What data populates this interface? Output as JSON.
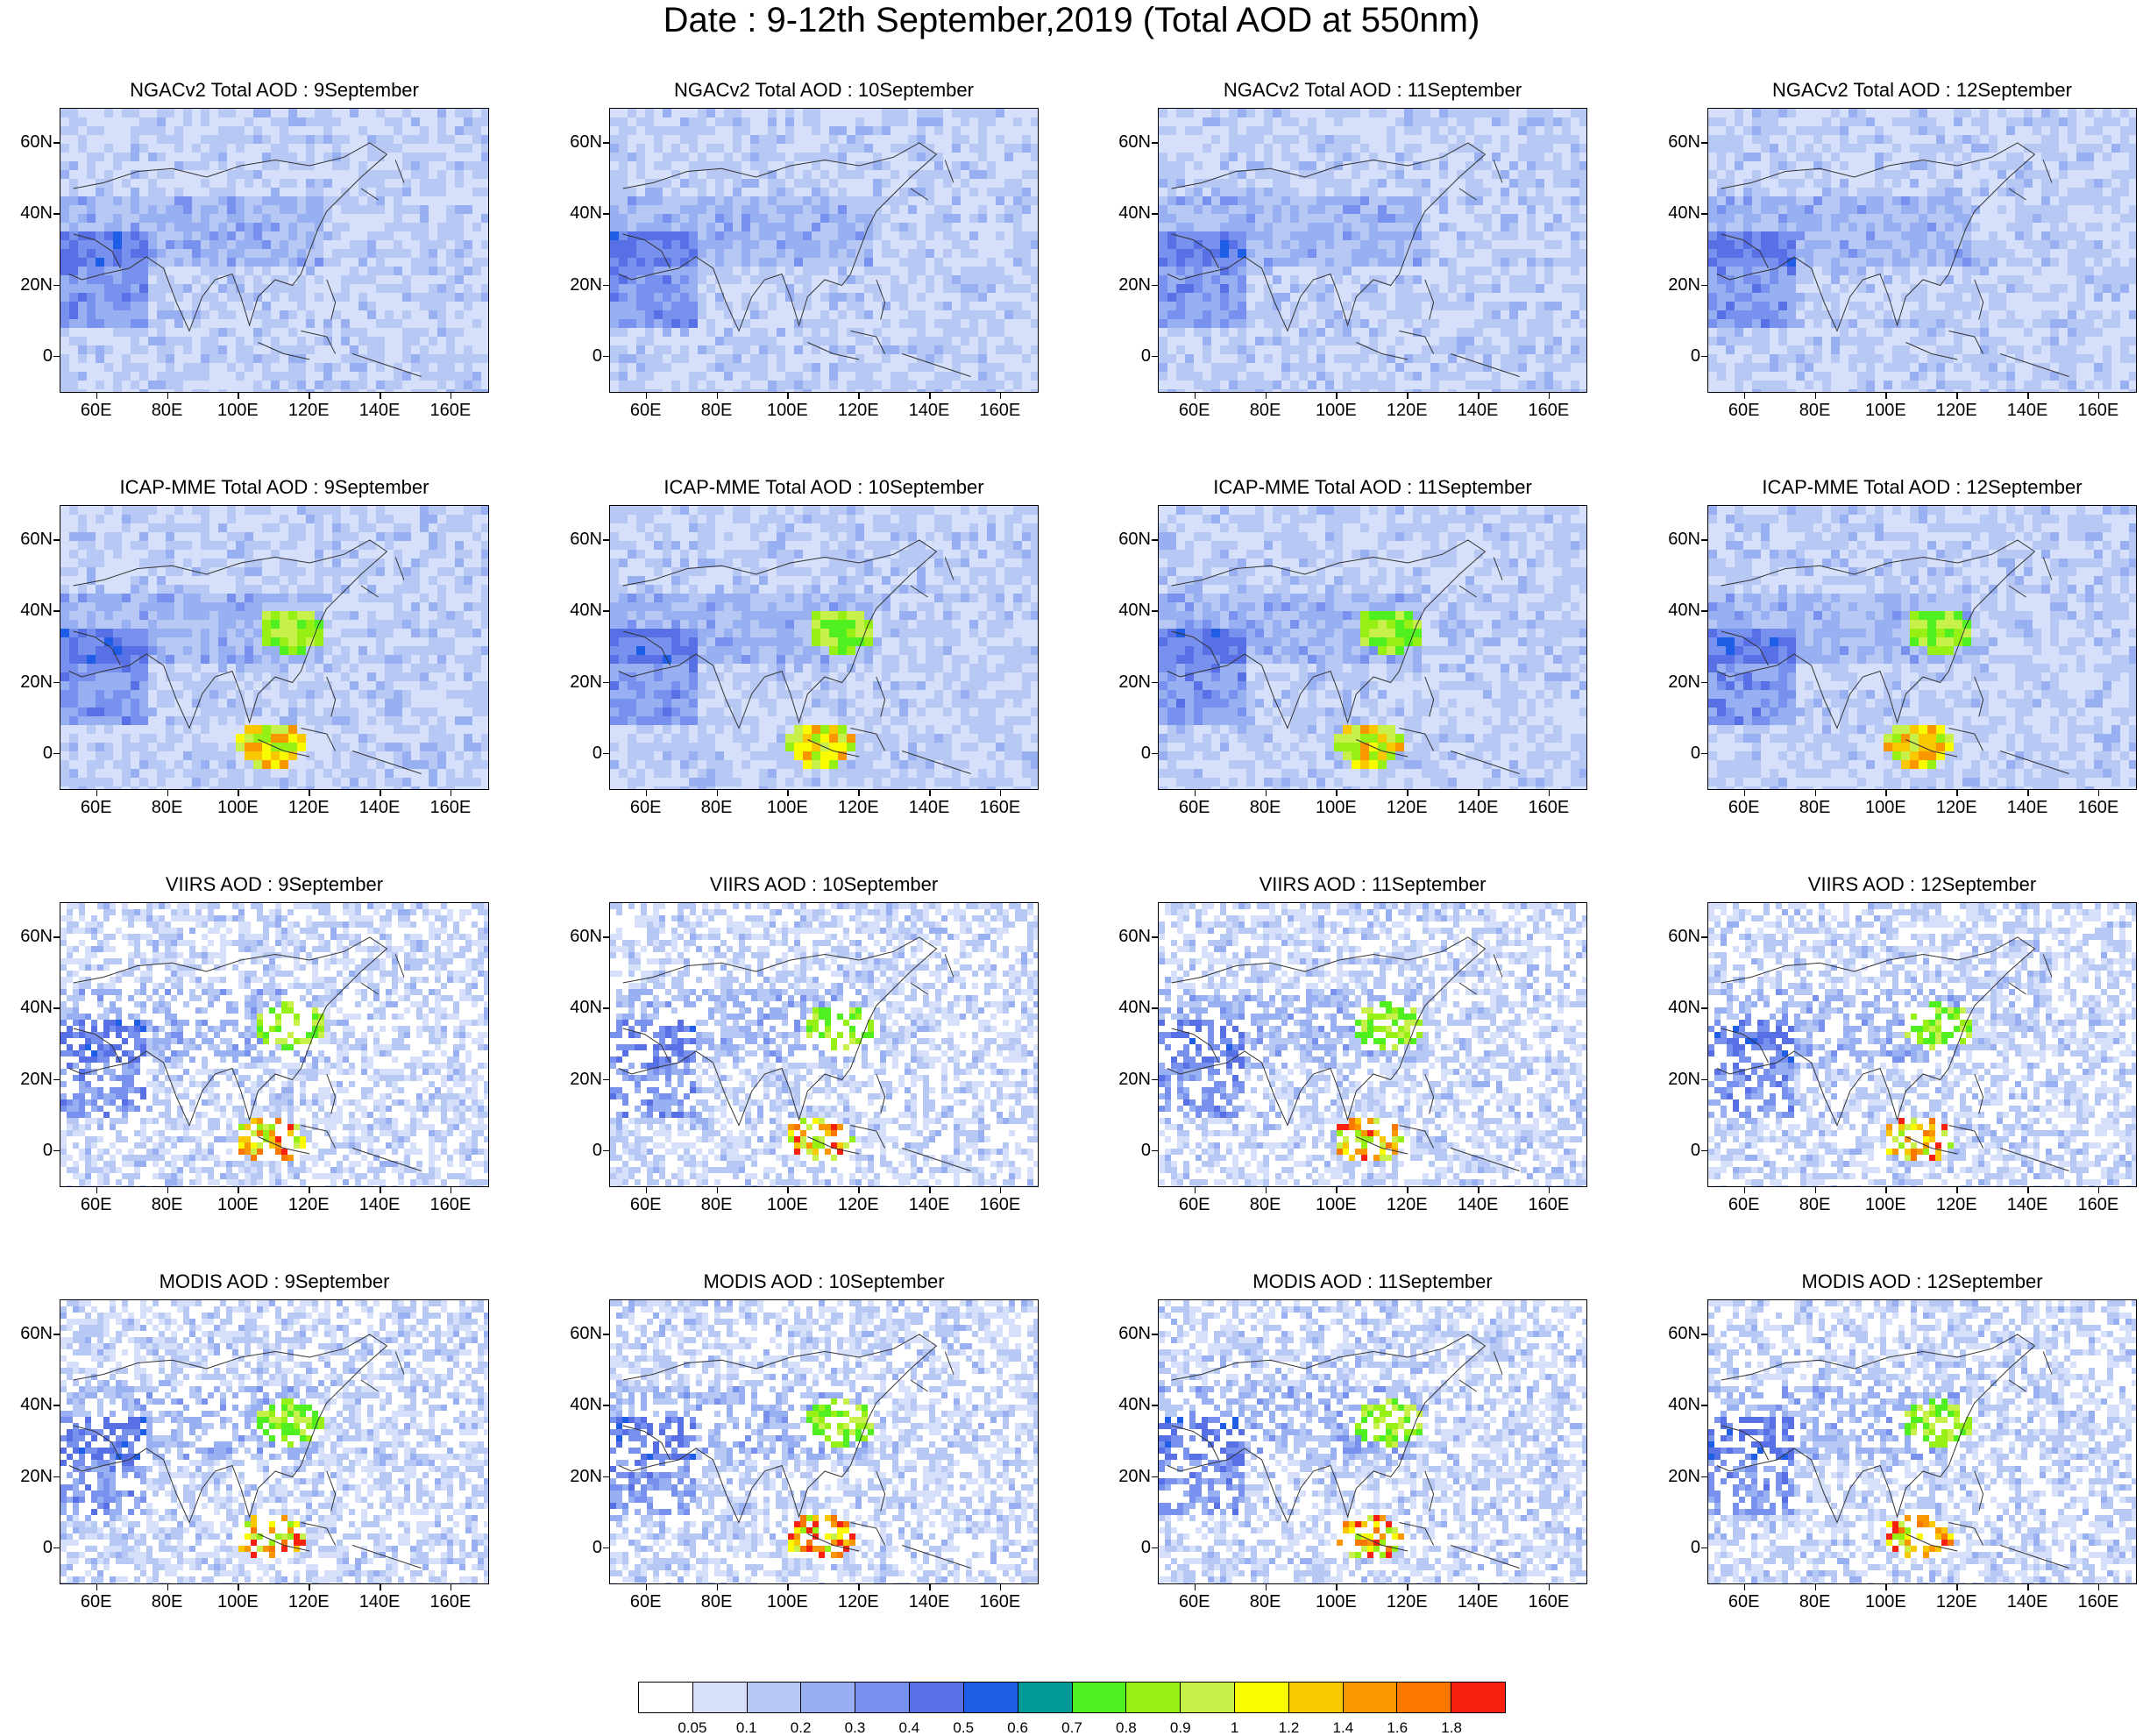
{
  "title": "Date : 9-12th September,2019 (Total AOD at 550nm)",
  "lat_labels": [
    "60N",
    "40N",
    "20N",
    "0"
  ],
  "lon_labels": [
    "60E",
    "80E",
    "100E",
    "120E",
    "140E",
    "160E"
  ],
  "rows": [
    {
      "model": "NGACv2 Total AOD",
      "titles": [
        "NGACv2 Total AOD : 9September",
        "NGACv2 Total AOD : 10September",
        "NGACv2 Total AOD : 11September",
        "NGACv2 Total AOD : 12September"
      ]
    },
    {
      "model": "ICAP-MME Total AOD",
      "titles": [
        "ICAP-MME Total AOD : 9September",
        "ICAP-MME Total AOD : 10September",
        "ICAP-MME Total AOD : 11September",
        "ICAP-MME Total AOD : 12September"
      ]
    },
    {
      "model": "VIIRS AOD",
      "titles": [
        "VIIRS AOD : 9September",
        "VIIRS AOD : 10September",
        "VIIRS AOD : 11September",
        "VIIRS AOD : 12September"
      ]
    },
    {
      "model": "MODIS AOD",
      "titles": [
        "MODIS AOD : 9September",
        "MODIS AOD : 10September",
        "MODIS AOD : 11September",
        "MODIS AOD : 12September"
      ]
    }
  ],
  "colorbar": {
    "labels": [
      "0.05",
      "0.1",
      "0.2",
      "0.3",
      "0.4",
      "0.5",
      "0.6",
      "0.7",
      "0.8",
      "0.9",
      "1",
      "1.2",
      "1.4",
      "1.6",
      "1.8"
    ],
    "colors": [
      "#ffffff",
      "#d6e0fa",
      "#b8c8f5",
      "#98b0f2",
      "#7890ee",
      "#5870e6",
      "#1e5ee6",
      "#009a96",
      "#50f020",
      "#96f014",
      "#c8f04a",
      "#fafa00",
      "#fac800",
      "#fa9600",
      "#fa7800",
      "#fa2010"
    ]
  }
}
